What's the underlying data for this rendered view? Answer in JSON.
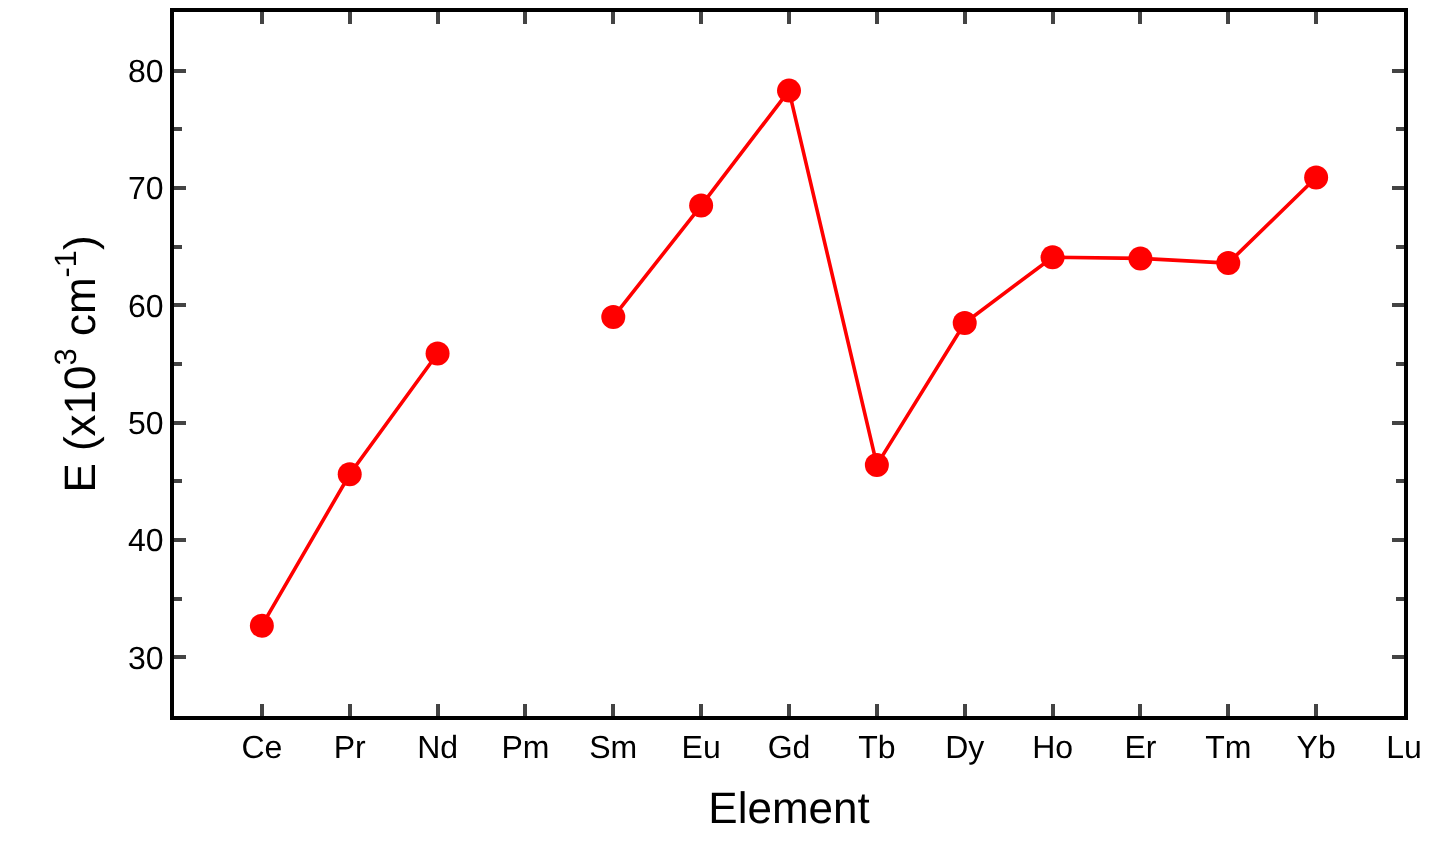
{
  "chart_data": {
    "type": "line",
    "xlabel": "Element",
    "ylabel": "E (x10$^{3}$ cm$^{-1}$)",
    "categories": [
      "Ce",
      "Pr",
      "Nd",
      "Pm",
      "Sm",
      "Eu",
      "Gd",
      "Tb",
      "Dy",
      "Ho",
      "Er",
      "Tm",
      "Yb",
      "Lu"
    ],
    "series": [
      {
        "color": "#ff0000",
        "values": [
          32.7,
          45.6,
          55.9,
          null,
          59.0,
          68.5,
          78.3,
          46.4,
          58.5,
          64.1,
          64.0,
          63.6,
          70.9,
          null
        ]
      }
    ],
    "ylim": [
      25,
      85
    ],
    "yticks": [
      30,
      40,
      50,
      60,
      70,
      80
    ],
    "marker": "circle",
    "line_style": "solid"
  }
}
